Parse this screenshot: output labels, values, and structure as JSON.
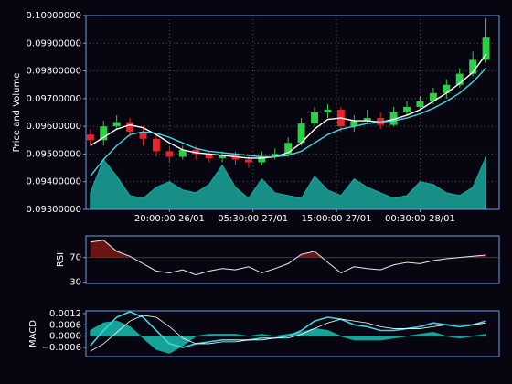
{
  "chart_data": [
    {
      "type": "candlestick",
      "ylabel": "Price and Volume",
      "x": [
        "11:00:00 26/01",
        "12:30:00 26/01",
        "14:00:00 26/01",
        "15:30:00 26/01",
        "17:00:00 26/01",
        "18:30:00 26/01",
        "20:00:00 26/01",
        "21:30:00 26/01",
        "23:00:00 26/01",
        "00:30:00 27/01",
        "02:00:00 27/01",
        "03:30:00 27/01",
        "05:00:00 27/01",
        "06:30:00 27/01",
        "08:00:00 27/01",
        "09:30:00 27/01",
        "11:00:00 27/01",
        "12:30:00 27/01",
        "14:00:00 27/01",
        "15:30:00 27/01",
        "17:00:00 27/01",
        "18:30:00 27/01",
        "20:00:00 27/01",
        "21:30:00 27/01",
        "23:00:00 27/01",
        "00:30:00 28/01",
        "02:00:00 28/01",
        "03:30:00 28/01",
        "05:00:00 28/01",
        "06:30:00 28/01",
        "08:00:00 28/01"
      ],
      "xlim": [
        "10:30:00 26/01",
        "09:30:00 28/01"
      ],
      "xticks": [
        "20:00:00 26/01",
        "05:30:00 27/01",
        "15:00:00 27/01",
        "00:30:00 28/01"
      ],
      "ylim": [
        0.093,
        0.1
      ],
      "yticks": [
        {
          "value": 0.093,
          "label": "0.09300000"
        },
        {
          "value": 0.094,
          "label": "0.09400000"
        },
        {
          "value": 0.095,
          "label": "0.09500000"
        },
        {
          "value": 0.096,
          "label": "0.09600000"
        },
        {
          "value": 0.097,
          "label": "0.09700000"
        },
        {
          "value": 0.098,
          "label": "0.09800000"
        },
        {
          "value": 0.099,
          "label": "0.09900000"
        },
        {
          "value": 0.1,
          "label": "0.10000000"
        }
      ],
      "grid": true,
      "open": [
        0.0957,
        0.0955,
        0.096,
        0.09615,
        0.0958,
        0.09555,
        0.0951,
        0.0949,
        0.09515,
        0.095,
        0.09485,
        0.09495,
        0.0948,
        0.0947,
        0.0949,
        0.095,
        0.0954,
        0.0961,
        0.0965,
        0.0966,
        0.096,
        0.0962,
        0.0963,
        0.09605,
        0.0965,
        0.0967,
        0.0969,
        0.0972,
        0.0975,
        0.0979,
        0.0984
      ],
      "high": [
        0.0959,
        0.0962,
        0.0964,
        0.0963,
        0.096,
        0.0957,
        0.0953,
        0.0953,
        0.0953,
        0.0951,
        0.0951,
        0.0951,
        0.095,
        0.0951,
        0.0952,
        0.0956,
        0.0963,
        0.0967,
        0.0968,
        0.0967,
        0.0964,
        0.0966,
        0.0965,
        0.0967,
        0.0969,
        0.0971,
        0.0974,
        0.0977,
        0.0981,
        0.0987,
        0.0999
      ],
      "low": [
        0.0953,
        0.0953,
        0.0959,
        0.0956,
        0.0953,
        0.0949,
        0.0947,
        0.0948,
        0.0948,
        0.0947,
        0.0947,
        0.0946,
        0.0945,
        0.0946,
        0.0948,
        0.0949,
        0.0953,
        0.096,
        0.0963,
        0.0958,
        0.0958,
        0.0961,
        0.0959,
        0.096,
        0.0964,
        0.0966,
        0.0968,
        0.097,
        0.0974,
        0.0978,
        0.0983
      ],
      "close": [
        0.0955,
        0.096,
        0.09615,
        0.0958,
        0.09555,
        0.0951,
        0.0949,
        0.09515,
        0.095,
        0.09485,
        0.09495,
        0.0948,
        0.0947,
        0.0949,
        0.095,
        0.0954,
        0.0961,
        0.0965,
        0.0966,
        0.096,
        0.0962,
        0.0963,
        0.09605,
        0.0965,
        0.0967,
        0.0969,
        0.0972,
        0.0975,
        0.0979,
        0.0984,
        0.0992
      ],
      "up_color": "#2fcf45",
      "down_color": "#e8242c",
      "moving_averages": [
        {
          "color": "#ffffff",
          "values": [
            0.0953,
            0.0956,
            0.0959,
            0.09605,
            0.09595,
            0.0957,
            0.0954,
            0.09515,
            0.09505,
            0.095,
            0.09495,
            0.0949,
            0.09485,
            0.09485,
            0.0949,
            0.09505,
            0.0954,
            0.0959,
            0.09625,
            0.0963,
            0.0962,
            0.0962,
            0.09615,
            0.09625,
            0.0964,
            0.0966,
            0.0969,
            0.0972,
            0.09755,
            0.09795,
            0.0986
          ]
        },
        {
          "color": "#3fd8e6",
          "values": [
            0.0942,
            0.0948,
            0.0953,
            0.0957,
            0.0958,
            0.09575,
            0.0956,
            0.0954,
            0.0952,
            0.0951,
            0.09505,
            0.095,
            0.09495,
            0.0949,
            0.0949,
            0.09495,
            0.0951,
            0.0954,
            0.0957,
            0.0959,
            0.096,
            0.0961,
            0.09615,
            0.0962,
            0.0963,
            0.09645,
            0.09665,
            0.0969,
            0.0972,
            0.0976,
            0.0981
          ]
        }
      ],
      "volume": {
        "color": "#1aa89c",
        "axis": "y2",
        "values": [
          30,
          90,
          60,
          25,
          20,
          40,
          50,
          35,
          30,
          45,
          80,
          40,
          20,
          55,
          30,
          25,
          20,
          60,
          35,
          25,
          55,
          40,
          30,
          20,
          25,
          50,
          45,
          30,
          25,
          40,
          95
        ]
      },
      "y2lim": [
        0,
        350
      ]
    },
    {
      "type": "rsi",
      "ylabel": "RSI",
      "ylim": [
        28,
        105
      ],
      "yticks": [
        30,
        70
      ],
      "values": [
        95,
        98,
        80,
        72,
        60,
        48,
        45,
        50,
        42,
        48,
        52,
        50,
        55,
        45,
        52,
        60,
        75,
        80,
        62,
        45,
        55,
        52,
        50,
        58,
        62,
        60,
        65,
        68,
        70,
        72,
        74
      ],
      "color": "#dfeeff",
      "overbought": 70,
      "overbought_color": "#8b1a1a",
      "overbought_fill": "#6b1414"
    },
    {
      "type": "macd",
      "ylabel": "MACD",
      "ylim": [
        -0.00108,
        0.00134
      ],
      "yticks": [
        {
          "value": -0.0006,
          "label": "−0.0006"
        },
        {
          "value": 0,
          "label": "0.0000"
        },
        {
          "value": 0.0006,
          "label": "0.0006"
        },
        {
          "value": 0.0012,
          "label": "0.0012"
        }
      ],
      "series": [
        {
          "color": "#3fd8e6",
          "values": [
            -0.0005,
            0.0003,
            0.001,
            0.0013,
            0.001,
            0.0003,
            -0.0004,
            -0.0006,
            -0.0004,
            -0.0003,
            -0.0002,
            -0.0002,
            -0.0002,
            -0.0001,
            -0.0001,
            0,
            0.0003,
            0.0008,
            0.001,
            0.0009,
            0.0006,
            0.0005,
            0.0003,
            0.0003,
            0.0004,
            0.0005,
            0.0007,
            0.0006,
            0.0005,
            0.0006,
            0.0008
          ]
        },
        {
          "color": "#ffffff",
          "values": [
            -0.0008,
            -0.0004,
            0.0002,
            0.0008,
            0.0011,
            0.001,
            0.0005,
            -0.0001,
            -0.0004,
            -0.0004,
            -0.0003,
            -0.0003,
            -0.0002,
            -0.0002,
            -0.0001,
            -0.0001,
            0.0001,
            0.0004,
            0.0007,
            0.0009,
            0.0008,
            0.0007,
            0.0005,
            0.0004,
            0.0004,
            0.0004,
            0.0005,
            0.0006,
            0.0006,
            0.0006,
            0.0007
          ]
        }
      ],
      "histogram": {
        "color": "#17a398",
        "values": [
          0.0003,
          0.0007,
          0.0008,
          0.0005,
          -0.0001,
          -0.0007,
          -0.0009,
          -0.0005,
          0,
          0.0001,
          0.0001,
          0.0001,
          0,
          0.0001,
          0,
          0.0001,
          0.0002,
          0.0004,
          0.0003,
          0,
          -0.0002,
          -0.0002,
          -0.0002,
          -0.0001,
          0,
          0.0001,
          0.0002,
          0,
          -0.0001,
          0,
          0.0001
        ]
      }
    }
  ]
}
